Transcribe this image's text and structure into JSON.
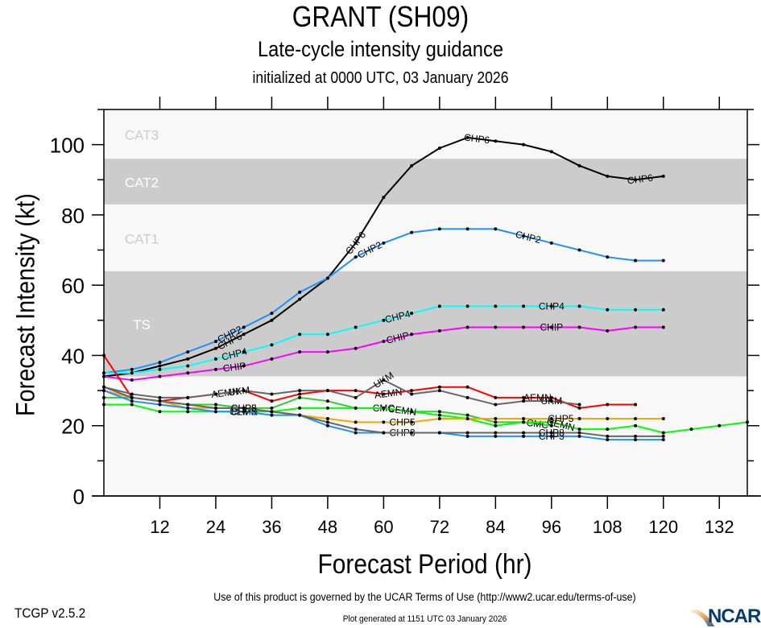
{
  "header": {
    "title": "GRANT (SH09)",
    "subtitle": "Late-cycle intensity guidance",
    "init_line": "initialized at 0000 UTC, 03 January 2026"
  },
  "footer": {
    "terms": "Use of this product is governed by the UCAR Terms of Use (http://www2.ucar.edu/terms-of-use)",
    "version": "TCGP v2.5.2",
    "generated": "Plot generated at 1151 UTC   03 January 2026",
    "logo": "NCAR"
  },
  "chart_data": {
    "type": "line",
    "title": "GRANT (SH09)",
    "xlabel": "Forecast Period (hr)",
    "ylabel": "Forecast Intensity (kt)",
    "xlim": [
      0,
      138
    ],
    "ylim": [
      0,
      110
    ],
    "xticks": [
      12,
      24,
      36,
      48,
      60,
      72,
      84,
      96,
      108,
      120,
      132
    ],
    "yticks": [
      0,
      20,
      40,
      60,
      80,
      100
    ],
    "grid": false,
    "legend": "inline-labels",
    "bands": [
      {
        "label": "TS",
        "from": 34,
        "to": 64,
        "fill": "#cccccc",
        "text_color": "#ffffff"
      },
      {
        "label": "CAT1",
        "from": 64,
        "to": 83,
        "fill": "#f8f8f8",
        "text_color": "#cccccc"
      },
      {
        "label": "CAT2",
        "from": 83,
        "to": 96,
        "fill": "#cccccc",
        "text_color": "#ffffff"
      },
      {
        "label": "CAT3",
        "from": 96,
        "to": 110,
        "fill": "#f8f8f8",
        "text_color": "#cccccc"
      },
      {
        "label": "",
        "from": 0,
        "to": 34,
        "fill": "#f8f8f8",
        "text_color": "#cccccc"
      }
    ],
    "series": [
      {
        "name": "CHP6",
        "color": "#000000",
        "x": [
          0,
          6,
          12,
          18,
          24,
          30,
          36,
          42,
          48,
          54,
          60,
          66,
          72,
          78,
          84,
          90,
          96,
          102,
          108,
          114,
          120
        ],
        "values": [
          34,
          35,
          37,
          39,
          42,
          46,
          50,
          56,
          62,
          72,
          85,
          94,
          99,
          102,
          101,
          100,
          98,
          94,
          91,
          90,
          91
        ],
        "labels_at": [
          27,
          54,
          80,
          115
        ]
      },
      {
        "name": "CHP2",
        "color": "#1e90ff",
        "x": [
          0,
          6,
          12,
          18,
          24,
          30,
          36,
          42,
          48,
          54,
          60,
          66,
          72,
          78,
          84,
          90,
          96,
          102,
          108,
          114,
          120
        ],
        "values": [
          35,
          36,
          38,
          41,
          44,
          48,
          52,
          58,
          62,
          68,
          72,
          75,
          76,
          76,
          76,
          74,
          72,
          70,
          68,
          67,
          67
        ],
        "labels_at": [
          27,
          57,
          91
        ]
      },
      {
        "name": "CHP4",
        "color": "#00ffff",
        "x": [
          0,
          6,
          12,
          18,
          24,
          30,
          36,
          42,
          48,
          54,
          60,
          66,
          72,
          78,
          84,
          90,
          96,
          102,
          108,
          114,
          120
        ],
        "values": [
          35,
          35,
          36,
          37,
          39,
          41,
          43,
          46,
          46,
          48,
          50,
          52,
          54,
          54,
          54,
          54,
          54,
          54,
          53,
          53,
          53
        ],
        "labels_at": [
          28,
          63,
          96
        ]
      },
      {
        "name": "CHIP",
        "color": "#ff00ff",
        "x": [
          0,
          6,
          12,
          18,
          24,
          30,
          36,
          42,
          48,
          54,
          60,
          66,
          72,
          78,
          84,
          90,
          96,
          102,
          108,
          114,
          120
        ],
        "values": [
          34,
          33,
          34,
          35,
          36,
          37,
          39,
          41,
          41,
          42,
          44,
          46,
          47,
          48,
          48,
          48,
          48,
          48,
          47,
          48,
          48
        ],
        "labels_at": [
          28,
          63,
          96
        ]
      },
      {
        "name": "AEMN",
        "color": "#ff0000",
        "x": [
          0,
          6,
          12,
          18,
          24,
          30,
          36,
          42,
          48,
          54,
          60,
          66,
          72,
          78,
          84,
          90,
          96,
          102,
          108,
          114
        ],
        "values": [
          40,
          28,
          27,
          28,
          29,
          30,
          27,
          29,
          30,
          30,
          29,
          30,
          31,
          31,
          28,
          28,
          28,
          25,
          26,
          26
        ],
        "labels_at": [
          26,
          61,
          93
        ]
      },
      {
        "name": "UKM",
        "color": "#666666",
        "x": [
          0,
          6,
          12,
          18,
          24,
          30,
          36,
          42,
          48,
          54,
          60,
          66,
          72,
          78,
          84,
          90,
          96,
          102
        ],
        "values": [
          31,
          29,
          28,
          28,
          29,
          30,
          29,
          30,
          30,
          28,
          33,
          29,
          30,
          28,
          26,
          27,
          27,
          26
        ],
        "labels_at": [
          29,
          60,
          96
        ]
      },
      {
        "name": "CMC",
        "color": "#33cc33",
        "x": [
          0,
          6,
          12,
          18,
          24,
          30,
          36,
          42,
          48,
          54,
          60,
          66,
          72,
          78,
          84,
          90,
          96
        ],
        "values": [
          28,
          28,
          27,
          26,
          26,
          25,
          25,
          28,
          27,
          25,
          25,
          24,
          24,
          23,
          21,
          21,
          20
        ],
        "labels_at": [
          60,
          93
        ]
      },
      {
        "name": "CEMN",
        "color": "#00ff00",
        "x": [
          0,
          6,
          12,
          18,
          24,
          30,
          36,
          42,
          48,
          54,
          60,
          66,
          72,
          78,
          84,
          90,
          96,
          102,
          108,
          114,
          120,
          126,
          132,
          138
        ],
        "values": [
          26,
          26,
          24,
          24,
          24,
          24,
          24,
          25,
          25,
          25,
          25,
          24,
          23,
          22,
          20,
          21,
          21,
          19,
          19,
          20,
          18,
          19,
          20,
          21
        ],
        "labels_at": [
          30,
          64,
          98
        ]
      },
      {
        "name": "CHP5",
        "color": "#ffa500",
        "x": [
          0,
          6,
          12,
          18,
          24,
          30,
          36,
          42,
          48,
          54,
          60,
          66,
          72,
          78,
          84,
          90,
          96,
          102,
          108,
          114,
          120
        ],
        "values": [
          30,
          28,
          27,
          25,
          25,
          25,
          24,
          23,
          22,
          21,
          21,
          21,
          22,
          22,
          22,
          22,
          22,
          22,
          22,
          22,
          22
        ],
        "labels_at": [
          30,
          64,
          98
        ]
      },
      {
        "name": "CHP3",
        "color": "#1e90ff",
        "x": [
          0,
          6,
          12,
          18,
          24,
          30,
          36,
          42,
          48,
          54,
          60,
          66,
          72,
          78,
          84,
          90,
          96,
          102,
          108,
          114,
          120
        ],
        "values": [
          30,
          27,
          26,
          25,
          24,
          24,
          23,
          23,
          20,
          18,
          18,
          18,
          18,
          17,
          17,
          17,
          17,
          17,
          16,
          16,
          16
        ],
        "labels_at": [
          30,
          64,
          96
        ]
      },
      {
        "name": "CHP8",
        "color": "#666666",
        "x": [
          0,
          6,
          12,
          18,
          24,
          30,
          36,
          42,
          48,
          54,
          60,
          66,
          72,
          78,
          84,
          90,
          96,
          102,
          108,
          114,
          120
        ],
        "values": [
          31,
          28,
          27,
          26,
          25,
          25,
          24,
          23,
          21,
          19,
          18,
          18,
          18,
          18,
          18,
          18,
          18,
          18,
          17,
          17,
          17
        ],
        "labels_at": [
          30,
          96
        ]
      }
    ]
  }
}
